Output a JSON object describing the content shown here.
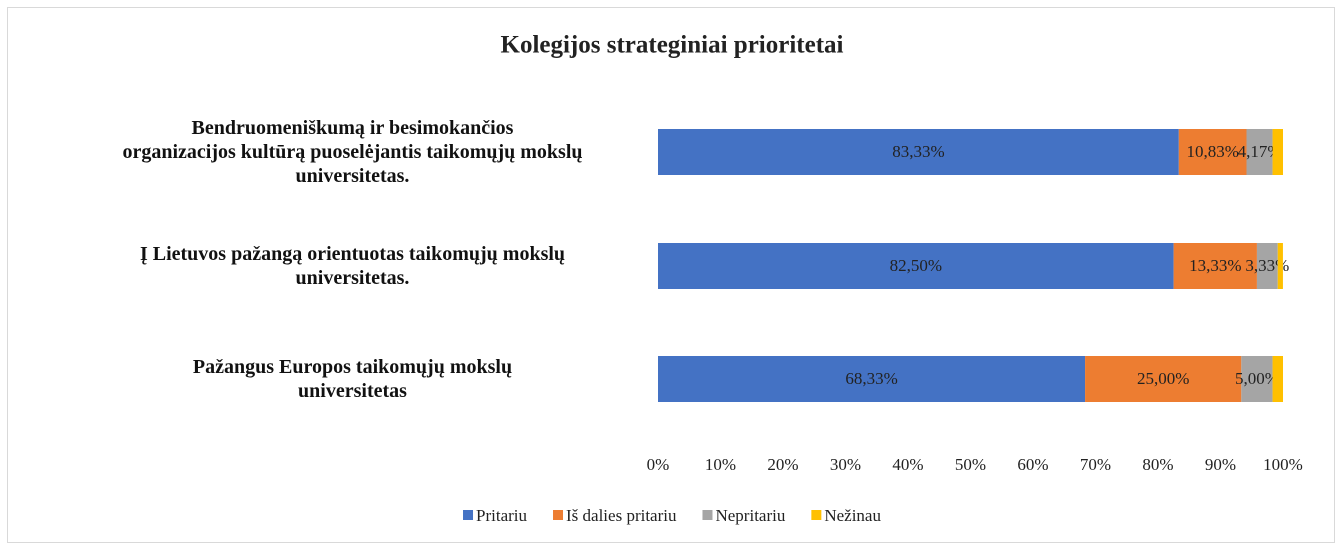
{
  "chart_data": {
    "type": "stacked-bar-horizontal",
    "title": "Kolegijos strateginiai prioritetai",
    "categories": [
      "Bendruomeniškumą ir besimokančios\norganizacijos kultūrą puoselėjantis taikomųjų mokslų\nuniversitetas.",
      "Į Lietuvos pažangą orientuotas taikomųjų mokslų\nuniversitetas.",
      "Pažangus Europos taikomųjų mokslų\nuniversitetas"
    ],
    "series": [
      {
        "name": "Pritariu",
        "color": "#4472c4",
        "values": [
          83.33,
          82.5,
          68.33
        ],
        "value_labels": [
          "83,33%",
          "82,50%",
          "68,33%"
        ]
      },
      {
        "name": "Iš dalies pritariu",
        "color": "#ed7d31",
        "values": [
          10.83,
          13.33,
          25
        ],
        "value_labels": [
          "10,83%",
          "13,33%",
          "25,00%"
        ]
      },
      {
        "name": "Nepritariu",
        "color": "#a5a5a5",
        "values": [
          4.17,
          3.33,
          5
        ],
        "value_labels": [
          "4,17%",
          "3,33%",
          "5,00%"
        ]
      },
      {
        "name": "Nežinau",
        "color": "#ffc000",
        "values": [
          1.67,
          0.83,
          1.67
        ]
      }
    ],
    "xlim": [
      0,
      100
    ],
    "xticks": [
      {
        "value": 0,
        "label": "0%"
      },
      {
        "value": 10,
        "label": "10%"
      },
      {
        "value": 20,
        "label": "20%"
      },
      {
        "value": 30,
        "label": "30%"
      },
      {
        "value": 40,
        "label": "40%"
      },
      {
        "value": 50,
        "label": "50%"
      },
      {
        "value": 60,
        "label": "60%"
      },
      {
        "value": 70,
        "label": "70%"
      },
      {
        "value": 80,
        "label": "80%"
      },
      {
        "value": 90,
        "label": "90%"
      },
      {
        "value": 100,
        "label": "100%"
      }
    ],
    "grid": false,
    "legend": "bottom"
  }
}
